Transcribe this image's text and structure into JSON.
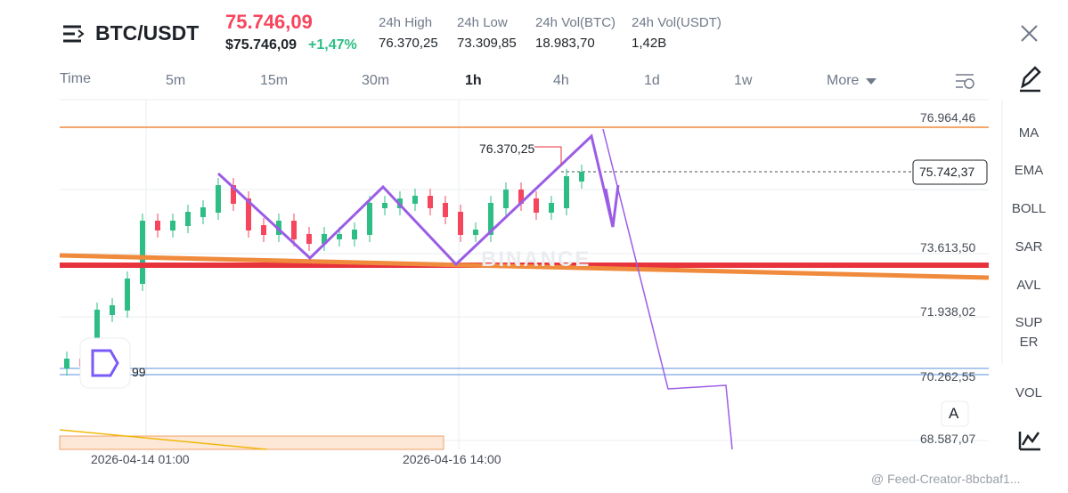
{
  "header": {
    "pair": "BTC/USDT",
    "price": "75.746,09",
    "price_usd": "$75.746,09",
    "change": "+1,47%",
    "stats": [
      {
        "label": "24h High",
        "value": "76.370,25"
      },
      {
        "label": "24h Low",
        "value": "73.309,85"
      },
      {
        "label": "24h Vol(BTC)",
        "value": "18.983,70"
      },
      {
        "label": "24h Vol(USDT)",
        "value": "1,42B"
      }
    ]
  },
  "tabs": [
    "Time",
    "5m",
    "15m",
    "30m",
    "1h",
    "4h",
    "1d",
    "1w",
    "More"
  ],
  "chart": {
    "price_labels": [
      "76.964,46",
      "73.613,50",
      "71.938,02",
      "70.262,55",
      "68.587,07"
    ],
    "current_price": "75.742,37",
    "annotation": "76.370,25",
    "partial_label": "99",
    "watermark": "BINANCE",
    "dates": [
      "2026-04-14 01:00",
      "2026-04-16 14:00"
    ],
    "button": "A"
  },
  "indicators": [
    "MA",
    "EMA",
    "BOLL",
    "SAR",
    "AVL",
    "SUPER",
    "VOL"
  ],
  "footer": "@ Feed-Creator-8bcbaf1..."
}
